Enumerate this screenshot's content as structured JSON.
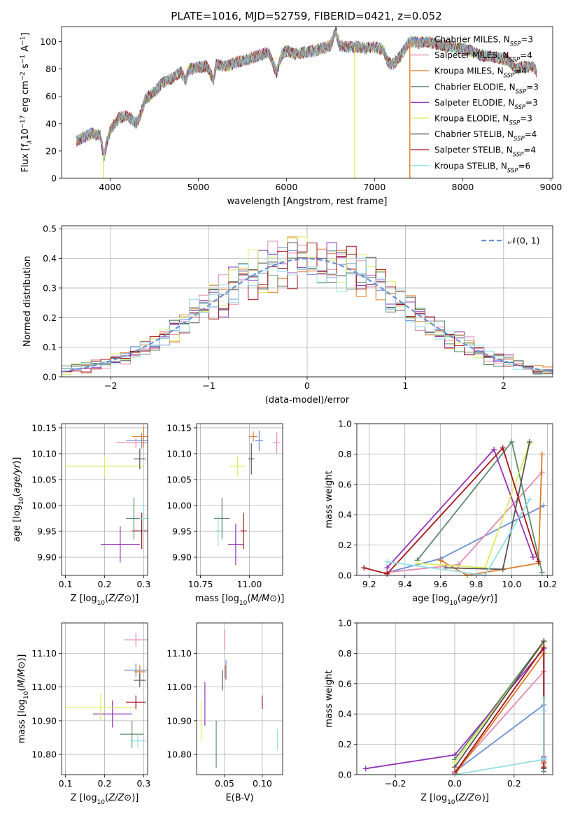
{
  "figure": {
    "title": "PLATE=1016, MJD=52759, FIBERID=0421, z=0.052"
  },
  "colors": {
    "chabrier_miles": "#6a8fd8",
    "salpeter_miles": "#e38ab0",
    "kroupa_miles": "#e07a23",
    "chabrier_elodie": "#5c8a6a",
    "salpeter_elodie": "#9334b8",
    "kroupa_elodie": "#d7ee5a",
    "chabrier_stelib": "#555555",
    "salpeter_stelib": "#a5121a",
    "kroupa_stelib": "#8fdce6",
    "spectrum": "#999999"
  },
  "legend_models": [
    {
      "label": "Chabrier MILES, N",
      "sub": "SSP",
      "val": "=3",
      "color": "#6a8fd8"
    },
    {
      "label": "Salpeter MILES, N",
      "sub": "SSP",
      "val": "=4",
      "color": "#e38ab0"
    },
    {
      "label": "Kroupa MILES, N",
      "sub": "SSP",
      "val": "=4",
      "color": "#e07a23"
    },
    {
      "label": "Chabrier ELODIE, N",
      "sub": "SSP",
      "val": "=3",
      "color": "#5c8a6a"
    },
    {
      "label": "Salpeter ELODIE, N",
      "sub": "SSP",
      "val": "=3",
      "color": "#9334b8"
    },
    {
      "label": "Kroupa ELODIE, N",
      "sub": "SSP",
      "val": "=3",
      "color": "#d7ee5a"
    },
    {
      "label": "Chabrier STELIB, N",
      "sub": "SSP",
      "val": "=4",
      "color": "#555555"
    },
    {
      "label": "Salpeter STELIB, N",
      "sub": "SSP",
      "val": "=4",
      "color": "#a5121a"
    },
    {
      "label": "Kroupa STELIB, N",
      "sub": "SSP",
      "val": "=6",
      "color": "#8fdce6"
    }
  ],
  "chart_data": [
    {
      "id": "spectrum",
      "type": "line",
      "xlabel": "wavelength [Angstrom, rest frame]",
      "ylabel": "Flux [f",
      "ylabel_parts": [
        "Flux [f",
        "λ",
        "10",
        "−17",
        " erg cm",
        "−2",
        " s",
        "−1",
        " A",
        "−1",
        "]"
      ],
      "xlim": [
        3450,
        9020
      ],
      "ylim": [
        0,
        111
      ],
      "xticks": [
        4000,
        5000,
        6000,
        7000,
        8000,
        9000
      ],
      "yticks": [
        0,
        20,
        40,
        60,
        80,
        100
      ],
      "grid": false,
      "legend": "right",
      "spectrum_anchors": [
        [
          3620,
          27
        ],
        [
          3700,
          30
        ],
        [
          3800,
          33
        ],
        [
          3890,
          31
        ],
        [
          3930,
          15
        ],
        [
          3960,
          26
        ],
        [
          4000,
          35
        ],
        [
          4100,
          44
        ],
        [
          4200,
          46
        ],
        [
          4300,
          40
        ],
        [
          4340,
          46
        ],
        [
          4400,
          58
        ],
        [
          4500,
          63
        ],
        [
          4600,
          70
        ],
        [
          4700,
          73
        ],
        [
          4800,
          78
        ],
        [
          4860,
          72
        ],
        [
          4900,
          80
        ],
        [
          5000,
          81
        ],
        [
          5100,
          82
        ],
        [
          5175,
          72
        ],
        [
          5200,
          83
        ],
        [
          5300,
          82
        ],
        [
          5400,
          84
        ],
        [
          5500,
          86
        ],
        [
          5600,
          88
        ],
        [
          5700,
          90
        ],
        [
          5800,
          92
        ],
        [
          5890,
          77
        ],
        [
          5950,
          91
        ],
        [
          6000,
          93
        ],
        [
          6100,
          91
        ],
        [
          6200,
          92
        ],
        [
          6300,
          93
        ],
        [
          6400,
          95
        ],
        [
          6500,
          97
        ],
        [
          6563,
          108
        ],
        [
          6600,
          97
        ],
        [
          6700,
          96
        ],
        [
          6800,
          96
        ],
        [
          6900,
          95
        ],
        [
          7000,
          96
        ],
        [
          7100,
          94
        ],
        [
          7150,
          85
        ],
        [
          7200,
          83
        ],
        [
          7250,
          86
        ],
        [
          7300,
          90
        ],
        [
          7400,
          100
        ],
        [
          7500,
          99
        ],
        [
          7600,
          100
        ],
        [
          7700,
          98
        ],
        [
          7800,
          97
        ],
        [
          7900,
          96
        ],
        [
          8000,
          95
        ],
        [
          8100,
          93
        ],
        [
          8200,
          90
        ],
        [
          8300,
          89
        ],
        [
          8400,
          88
        ],
        [
          8500,
          87
        ],
        [
          8600,
          80
        ],
        [
          8700,
          82
        ],
        [
          8800,
          81
        ],
        [
          8840,
          78
        ]
      ],
      "mask_lines": [
        [
          3925,
          "#d7ee5a"
        ],
        [
          6775,
          "#d7ee5a"
        ],
        [
          7400,
          "#e07a23"
        ]
      ]
    },
    {
      "id": "residuals",
      "type": "line",
      "xlabel": "(data-model)/error",
      "ylabel": "Normed distribution",
      "xlim": [
        -2.5,
        2.5
      ],
      "ylim": [
        0,
        0.51
      ],
      "xticks": [
        -2,
        -1,
        0,
        1,
        2
      ],
      "yticks": [
        0.0,
        0.1,
        0.2,
        0.3,
        0.4,
        0.5
      ],
      "grid": true,
      "legend": "top-right",
      "gaussian_label": "𝒩(0, 1)",
      "gaussian_color": "#6a8fd8",
      "bin_width": 0.1
    },
    {
      "id": "age_vs_Z",
      "type": "scatter",
      "xlabel": "Z [log10(Z/Z⊙)]",
      "ylabel": "age  [log10(age/yr)]",
      "xlim": [
        0.09,
        0.31
      ],
      "ylim": [
        9.865,
        10.158
      ],
      "xticks": [
        0.1,
        0.2,
        0.3
      ],
      "yticks": [
        9.9,
        9.95,
        10.0,
        10.05,
        10.1,
        10.15
      ],
      "grid": true,
      "points": [
        {
          "color": "#6a8fd8",
          "x": 0.295,
          "y": 10.125,
          "xe": 0.04,
          "ye": 0.015
        },
        {
          "color": "#e38ab0",
          "x": 0.28,
          "y": 10.121,
          "xe": 0.05,
          "ye": 0.01
        },
        {
          "color": "#e07a23",
          "x": 0.3,
          "y": 10.133,
          "xe": 0.03,
          "ye": 0.02
        },
        {
          "color": "#5c8a6a",
          "x": 0.275,
          "y": 9.975,
          "xe": 0.02,
          "ye": 0.04
        },
        {
          "color": "#9334b8",
          "x": 0.24,
          "y": 9.925,
          "xe": 0.05,
          "ye": 0.035
        },
        {
          "color": "#d7ee5a",
          "x": 0.2,
          "y": 10.076,
          "xe": 0.1,
          "ye": 0.02
        },
        {
          "color": "#555555",
          "x": 0.29,
          "y": 10.09,
          "xe": 0.015,
          "ye": 0.02
        },
        {
          "color": "#a5121a",
          "x": 0.295,
          "y": 9.951,
          "xe": 0.025,
          "ye": 0.035
        },
        {
          "color": "#8fdce6",
          "x": 0.3,
          "y": 9.975,
          "xe": 0.01,
          "ye": 0.03
        }
      ]
    },
    {
      "id": "age_vs_mass",
      "type": "scatter",
      "xlabel": "mass [log10(M/M⊙)]",
      "ylabel": "",
      "xlim": [
        10.73,
        11.17
      ],
      "ylim": [
        9.865,
        10.158
      ],
      "xticks": [
        10.75,
        11.0
      ],
      "yticks": [
        9.9,
        9.95,
        10.0,
        10.05,
        10.1,
        10.15
      ],
      "grid": true,
      "points": [
        {
          "color": "#6a8fd8",
          "x": 11.05,
          "y": 10.125,
          "xe": 0.02,
          "ye": 0.02
        },
        {
          "color": "#e38ab0",
          "x": 11.14,
          "y": 10.121,
          "xe": 0.02,
          "ye": 0.02
        },
        {
          "color": "#e07a23",
          "x": 11.02,
          "y": 10.133,
          "xe": 0.02,
          "ye": 0.01
        },
        {
          "color": "#5c8a6a",
          "x": 10.86,
          "y": 9.975,
          "xe": 0.04,
          "ye": 0.04
        },
        {
          "color": "#9334b8",
          "x": 10.93,
          "y": 9.925,
          "xe": 0.04,
          "ye": 0.04
        },
        {
          "color": "#d7ee5a",
          "x": 10.94,
          "y": 10.076,
          "xe": 0.04,
          "ye": 0.02
        },
        {
          "color": "#555555",
          "x": 11.01,
          "y": 10.09,
          "xe": 0.015,
          "ye": 0.03
        },
        {
          "color": "#a5121a",
          "x": 10.97,
          "y": 9.951,
          "xe": 0.015,
          "ye": 0.035
        },
        {
          "color": "#8fdce6",
          "x": 10.84,
          "y": 9.951,
          "xe": 0.015,
          "ye": 0.03
        }
      ]
    },
    {
      "id": "weight_vs_age",
      "type": "line",
      "xlabel": "age  [log10(age/yr)]",
      "ylabel": "mass weight",
      "xlim": [
        9.13,
        10.23
      ],
      "ylim": [
        0,
        1
      ],
      "xticks": [
        9.2,
        9.4,
        9.6,
        9.8,
        10.0,
        10.2
      ],
      "yticks": [
        0.0,
        0.2,
        0.4,
        0.6,
        0.8,
        1.0
      ],
      "grid": true,
      "series": [
        {
          "color": "#6a8fd8",
          "x": [
            9.3,
            9.6,
            10.18
          ],
          "y": [
            0.02,
            0.11,
            0.46
          ]
        },
        {
          "color": "#e38ab0",
          "x": [
            9.3,
            9.7,
            10.17
          ],
          "y": [
            0.02,
            0.07,
            0.68
          ]
        },
        {
          "color": "#e07a23",
          "x": [
            9.6,
            9.75,
            10.15,
            10.17
          ],
          "y": [
            0.1,
            0.0,
            0.08,
            0.8
          ]
        },
        {
          "color": "#5c8a6a",
          "x": [
            9.47,
            10.0,
            10.17
          ],
          "y": [
            0.1,
            0.88,
            0.02
          ]
        },
        {
          "color": "#9334b8",
          "x": [
            9.3,
            9.9,
            10.12
          ],
          "y": [
            0.05,
            0.83,
            0.12
          ]
        },
        {
          "color": "#d7ee5a",
          "x": [
            9.47,
            9.85,
            10.1
          ],
          "y": [
            0.08,
            0.05,
            0.87
          ]
        },
        {
          "color": "#555555",
          "x": [
            9.63,
            9.95,
            10.1
          ],
          "y": [
            0.05,
            0.04,
            0.88
          ]
        },
        {
          "color": "#a5121a",
          "x": [
            9.17,
            9.3,
            9.95,
            10.15
          ],
          "y": [
            0.05,
            0.01,
            0.84,
            0.09
          ]
        },
        {
          "color": "#8fdce6",
          "x": [
            9.3,
            9.85,
            10.1
          ],
          "y": [
            0.09,
            0.0,
            0.5
          ]
        }
      ]
    },
    {
      "id": "mass_vs_Z",
      "type": "scatter",
      "xlabel": "Z [log10(Z/Z⊙)]",
      "ylabel": "mass [log10(M/M⊙)]",
      "xlim": [
        0.09,
        0.31
      ],
      "ylim": [
        10.74,
        11.19
      ],
      "xticks": [
        0.1,
        0.2,
        0.3
      ],
      "yticks": [
        10.8,
        10.9,
        11.0,
        11.1
      ],
      "grid": true,
      "points": [
        {
          "color": "#6a8fd8",
          "x": 0.28,
          "y": 11.05,
          "xe": 0.03,
          "ye": 0.02
        },
        {
          "color": "#e38ab0",
          "x": 0.28,
          "y": 11.14,
          "xe": 0.03,
          "ye": 0.02
        },
        {
          "color": "#e07a23",
          "x": 0.29,
          "y": 11.045,
          "xe": 0.015,
          "ye": 0.02
        },
        {
          "color": "#5c8a6a",
          "x": 0.27,
          "y": 10.86,
          "xe": 0.03,
          "ye": 0.04
        },
        {
          "color": "#9334b8",
          "x": 0.22,
          "y": 10.92,
          "xe": 0.05,
          "ye": 0.04
        },
        {
          "color": "#d7ee5a",
          "x": 0.19,
          "y": 10.94,
          "xe": 0.09,
          "ye": 0.04
        },
        {
          "color": "#555555",
          "x": 0.29,
          "y": 11.02,
          "xe": 0.015,
          "ye": 0.02
        },
        {
          "color": "#a5121a",
          "x": 0.28,
          "y": 10.955,
          "xe": 0.025,
          "ye": 0.02
        },
        {
          "color": "#8fdce6",
          "x": 0.285,
          "y": 10.84,
          "xe": 0.02,
          "ye": 0.02
        }
      ]
    },
    {
      "id": "mass_vs_ebv",
      "type": "scatter",
      "xlabel": "E(B-V)",
      "ylabel": "",
      "xlim": [
        0.013,
        0.127
      ],
      "ylim": [
        10.74,
        11.19
      ],
      "xticks": [
        0.05,
        0.1
      ],
      "yticks": [
        10.8,
        10.9,
        11.0,
        11.1
      ],
      "grid": true,
      "points": [
        {
          "color": "#6a8fd8",
          "x": 0.052,
          "y": 11.05,
          "xe": 0.0,
          "ye": 0.03
        },
        {
          "color": "#e38ab0",
          "x": 0.05,
          "y": 11.14,
          "xe": 0.0,
          "ye": 0.03
        },
        {
          "color": "#e07a23",
          "x": 0.051,
          "y": 11.045,
          "xe": 0.0,
          "ye": 0.02
        },
        {
          "color": "#5c8a6a",
          "x": 0.039,
          "y": 10.83,
          "xe": 0.0,
          "ye": 0.07
        },
        {
          "color": "#9334b8",
          "x": 0.024,
          "y": 10.95,
          "xe": 0.0,
          "ye": 0.065
        },
        {
          "color": "#d7ee5a",
          "x": 0.019,
          "y": 10.9,
          "xe": 0.0,
          "ye": 0.06
        },
        {
          "color": "#555555",
          "x": 0.047,
          "y": 11.02,
          "xe": 0.0,
          "ye": 0.03
        },
        {
          "color": "#a5121a",
          "x": 0.1,
          "y": 10.955,
          "xe": 0.0,
          "ye": 0.02
        },
        {
          "color": "#8fdce6",
          "x": 0.12,
          "y": 10.845,
          "xe": 0.0,
          "ye": 0.03
        }
      ]
    },
    {
      "id": "weight_vs_Z",
      "type": "line",
      "xlabel": "Z [log10(Z/Z⊙)]",
      "ylabel": "mass weight",
      "xlim": [
        -0.33,
        0.33
      ],
      "ylim": [
        0,
        1
      ],
      "xticks": [
        -0.2,
        0.0,
        0.2
      ],
      "yticks": [
        0.0,
        0.2,
        0.4,
        0.6,
        0.8,
        1.0
      ],
      "grid": true,
      "series": [
        {
          "color": "#6a8fd8",
          "x": [
            0.0,
            0.3,
            0.3
          ],
          "y": [
            0.02,
            0.46,
            0.11
          ]
        },
        {
          "color": "#e38ab0",
          "x": [
            0.0,
            0.3,
            0.3
          ],
          "y": [
            0.02,
            0.68,
            0.07
          ]
        },
        {
          "color": "#e07a23",
          "x": [
            0.0,
            0.3,
            0.3,
            0.3
          ],
          "y": [
            0.0,
            0.8,
            0.08,
            0.1
          ]
        },
        {
          "color": "#5c8a6a",
          "x": [
            0.0,
            0.3,
            0.3
          ],
          "y": [
            0.1,
            0.88,
            0.02
          ]
        },
        {
          "color": "#9334b8",
          "x": [
            -0.3,
            0.0,
            0.3,
            0.3
          ],
          "y": [
            0.04,
            0.13,
            0.83,
            0.12
          ]
        },
        {
          "color": "#d7ee5a",
          "x": [
            0.0,
            0.3,
            0.3
          ],
          "y": [
            0.08,
            0.87,
            0.05
          ]
        },
        {
          "color": "#555555",
          "x": [
            0.0,
            0.3,
            0.3
          ],
          "y": [
            0.05,
            0.88,
            0.04
          ]
        },
        {
          "color": "#a5121a",
          "x": [
            0.0,
            0.3,
            0.3,
            0.3
          ],
          "y": [
            0.01,
            0.84,
            0.09,
            0.05
          ]
        },
        {
          "color": "#8fdce6",
          "x": [
            0.0,
            0.3,
            0.3,
            0.3
          ],
          "y": [
            0.0,
            0.1,
            0.5,
            0.42
          ]
        }
      ]
    }
  ]
}
